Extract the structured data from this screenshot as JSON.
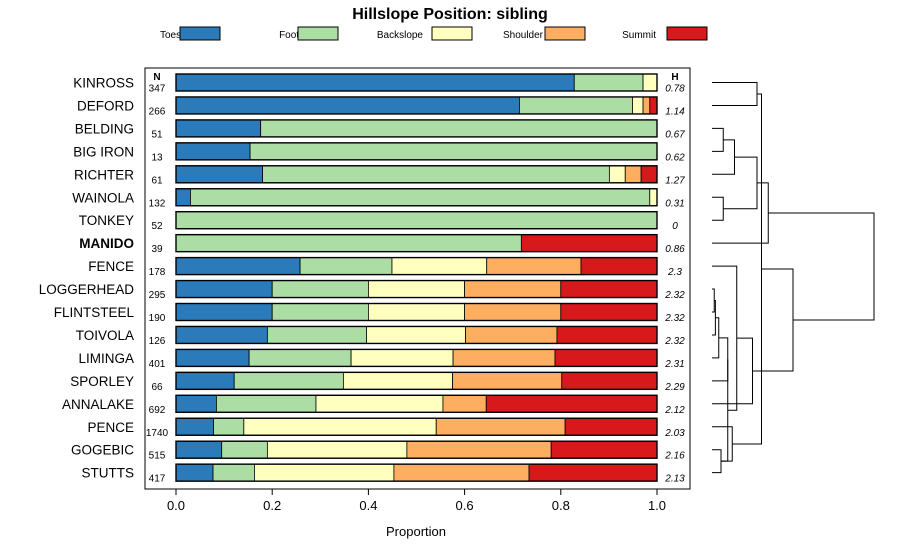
{
  "chart_data": {
    "type": "bar",
    "orientation": "horizontal",
    "stacked": true,
    "title": "Hillslope Position: sibling",
    "xlabel": "Proportion",
    "xlim": [
      0,
      1
    ],
    "xticks": [
      "0.0",
      "0.2",
      "0.4",
      "0.6",
      "0.8",
      "1.0"
    ],
    "n_header": "N",
    "h_header": "H",
    "legend_position": "top",
    "series": [
      {
        "name": "Toeslope",
        "color": "#2b7bba"
      },
      {
        "name": "Footslope",
        "color": "#abdda4"
      },
      {
        "name": "Backslope",
        "color": "#ffffbf"
      },
      {
        "name": "Shoulder",
        "color": "#fdae61"
      },
      {
        "name": "Summit",
        "color": "#d7191c"
      }
    ],
    "categories": [
      {
        "name": "KINROSS",
        "n": "347",
        "h": "0.78",
        "bold": false,
        "values": [
          0.828,
          0.143,
          0.029,
          0,
          0
        ]
      },
      {
        "name": "DEFORD",
        "n": "266",
        "h": "1.14",
        "bold": false,
        "values": [
          0.714,
          0.235,
          0.022,
          0.014,
          0.015
        ]
      },
      {
        "name": "BELDING",
        "n": "51",
        "h": "0.67",
        "bold": false,
        "values": [
          0.176,
          0.824,
          0,
          0,
          0
        ]
      },
      {
        "name": "BIG IRON",
        "n": "13",
        "h": "0.62",
        "bold": false,
        "values": [
          0.154,
          0.846,
          0,
          0,
          0
        ]
      },
      {
        "name": "RICHTER",
        "n": "61",
        "h": "1.27",
        "bold": false,
        "values": [
          0.18,
          0.721,
          0.033,
          0.033,
          0.033
        ]
      },
      {
        "name": "WAINOLA",
        "n": "132",
        "h": "0.31",
        "bold": false,
        "values": [
          0.03,
          0.955,
          0.015,
          0,
          0
        ]
      },
      {
        "name": "TONKEY",
        "n": "52",
        "h": "0",
        "bold": false,
        "values": [
          0,
          1,
          0,
          0,
          0
        ]
      },
      {
        "name": "MANIDO",
        "n": "39",
        "h": "0.86",
        "bold": true,
        "values": [
          0,
          0.718,
          0,
          0,
          0.282
        ]
      },
      {
        "name": "FENCE",
        "n": "178",
        "h": "2.3",
        "bold": false,
        "values": [
          0.258,
          0.191,
          0.197,
          0.196,
          0.158
        ]
      },
      {
        "name": "LOGGERHEAD",
        "n": "295",
        "h": "2.32",
        "bold": false,
        "values": [
          0.2,
          0.2,
          0.2,
          0.2,
          0.2
        ]
      },
      {
        "name": "FLINTSTEEL",
        "n": "190",
        "h": "2.32",
        "bold": false,
        "values": [
          0.2,
          0.2,
          0.2,
          0.2,
          0.2
        ]
      },
      {
        "name": "TOIVOLA",
        "n": "126",
        "h": "2.32",
        "bold": false,
        "values": [
          0.19,
          0.206,
          0.206,
          0.19,
          0.208
        ]
      },
      {
        "name": "LIMINGA",
        "n": "401",
        "h": "2.31",
        "bold": false,
        "values": [
          0.152,
          0.212,
          0.212,
          0.212,
          0.212
        ]
      },
      {
        "name": "SPORLEY",
        "n": "66",
        "h": "2.29",
        "bold": false,
        "values": [
          0.121,
          0.227,
          0.227,
          0.227,
          0.198
        ]
      },
      {
        "name": "ANNALAKE",
        "n": "692",
        "h": "2.12",
        "bold": false,
        "values": [
          0.084,
          0.207,
          0.264,
          0.09,
          0.355
        ]
      },
      {
        "name": "PENCE",
        "n": "1740",
        "h": "2.03",
        "bold": false,
        "values": [
          0.078,
          0.063,
          0.4,
          0.268,
          0.191
        ]
      },
      {
        "name": "GOGEBIC",
        "n": "515",
        "h": "2.16",
        "bold": false,
        "values": [
          0.095,
          0.095,
          0.29,
          0.3,
          0.22
        ]
      },
      {
        "name": "STUTTS",
        "n": "417",
        "h": "2.13",
        "bold": false,
        "values": [
          0.077,
          0.086,
          0.29,
          0.281,
          0.266
        ]
      }
    ],
    "dendrogram": {
      "leaves": [
        "KINROSS",
        "DEFORD",
        "BELDING",
        "BIG IRON",
        "RICHTER",
        "WAINOLA",
        "TONKEY",
        "MANIDO",
        "FENCE",
        "LOGGERHEAD",
        "FLINTSTEEL",
        "TOIVOLA",
        "LIMINGA",
        "SPORLEY",
        "ANNALAKE",
        "PENCE",
        "GOGEBIC",
        "STUTTS"
      ],
      "merges": [
        {
          "a": "L10",
          "b": "L11",
          "height": 0.01
        },
        {
          "a": "N0",
          "b": "L12",
          "height": 0.015
        },
        {
          "a": "N1",
          "b": "L13",
          "height": 0.03
        },
        {
          "a": "L17",
          "b": "L18",
          "height": 0.04
        },
        {
          "a": "L3",
          "b": "L4",
          "height": 0.05
        },
        {
          "a": "L6",
          "b": "L7",
          "height": 0.05
        },
        {
          "a": "L14",
          "b": "N2",
          "height": 0.07
        },
        {
          "a": "N3",
          "b": "N6",
          "height": 0.07
        },
        {
          "a": "L16",
          "b": "N3",
          "height": 0.09
        },
        {
          "a": "N4",
          "b": "L5",
          "height": 0.1
        },
        {
          "a": "L9",
          "b": "N7",
          "height": 0.11
        },
        {
          "a": "L15",
          "b": "N10",
          "height": 0.18
        },
        {
          "a": "L1",
          "b": "L2",
          "height": 0.2
        },
        {
          "a": "N9",
          "b": "N5",
          "height": 0.2
        },
        {
          "a": "N12",
          "b": "N8",
          "height": 0.22
        },
        {
          "a": "L8",
          "b": "N13",
          "height": 0.25
        },
        {
          "a": "N14",
          "b": "N11",
          "height": 0.36
        },
        {
          "a": "N15",
          "b": "N16",
          "height": 0.72
        }
      ]
    }
  }
}
